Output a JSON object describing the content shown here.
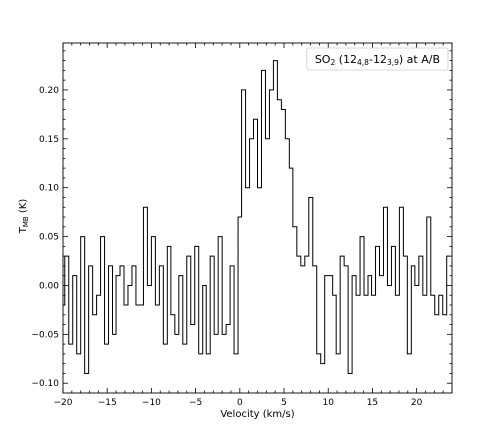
{
  "chart_data": {
    "type": "line",
    "step": true,
    "legend": {
      "placement": "top-right",
      "label": {
        "species": "SO",
        "species_sub": "2",
        "open": " (12",
        "sub1": "4,8",
        "dash": "-12",
        "sub2": "3,9",
        "close": ") at A/B"
      }
    },
    "xlabel": "Velocity (km/s)",
    "ylabel": {
      "main": "T",
      "sub": "MB",
      "unit": " (K)"
    },
    "xlim": [
      -20,
      24
    ],
    "ylim": [
      -0.11,
      0.248
    ],
    "xticks": [
      -20,
      -15,
      -10,
      -5,
      0,
      5,
      10,
      15,
      20
    ],
    "xtick_labels": [
      "−20",
      "−15",
      "−10",
      "−5",
      "0",
      "5",
      "10",
      "15",
      "20"
    ],
    "yticks": [
      -0.1,
      -0.05,
      0.0,
      0.05,
      0.1,
      0.15,
      0.2
    ],
    "ytick_labels": [
      "−0.10",
      "−0.05",
      "0.00",
      "0.05",
      "0.10",
      "0.15",
      "0.20"
    ],
    "grid": false,
    "series": [
      {
        "x": [
          -20.0,
          -19.6,
          -19.1,
          -18.7,
          -18.2,
          -17.8,
          -17.3,
          -16.9,
          -16.4,
          -16.0,
          -15.5,
          -15.1,
          -14.6,
          -14.2,
          -13.8,
          -13.3,
          -12.9,
          -12.4,
          -12.0,
          -11.5,
          -11.1,
          -10.7,
          -10.2,
          -9.8,
          -9.3,
          -8.9,
          -8.4,
          -8.0,
          -7.6,
          -7.1,
          -6.7,
          -6.2,
          -5.8,
          -5.3,
          -4.9,
          -4.4,
          -4.0,
          -3.6,
          -3.1,
          -2.7,
          -2.2,
          -1.8,
          -1.3,
          -0.9,
          -0.4,
          0.0,
          0.4,
          0.9,
          1.3,
          1.8,
          2.2,
          2.7,
          3.1,
          3.6,
          4.0,
          4.5,
          4.9,
          5.4,
          5.8,
          6.2,
          6.7,
          7.1,
          7.6,
          8.0,
          8.5,
          8.9,
          9.4,
          9.8,
          10.3,
          10.7,
          11.1,
          11.6,
          12.0,
          12.5,
          12.9,
          13.4,
          13.8,
          14.3,
          14.7,
          15.1,
          15.6,
          16.0,
          16.5,
          16.9,
          17.4,
          17.8,
          18.3,
          18.7,
          19.2,
          19.6,
          20.0,
          20.5,
          20.9,
          21.4,
          21.8,
          22.3,
          22.7,
          23.2,
          23.6
        ],
        "values": [
          -0.02,
          0.03,
          -0.06,
          0.01,
          -0.07,
          0.05,
          -0.09,
          0.02,
          -0.03,
          -0.01,
          0.05,
          -0.06,
          0.02,
          -0.05,
          0.01,
          0.02,
          -0.02,
          0.0,
          0.02,
          -0.02,
          -0.02,
          0.08,
          0.0,
          0.05,
          -0.02,
          0.02,
          -0.06,
          0.04,
          -0.03,
          -0.05,
          0.01,
          -0.06,
          0.03,
          -0.04,
          0.04,
          -0.07,
          0.0,
          -0.07,
          0.03,
          -0.05,
          0.05,
          -0.05,
          -0.04,
          0.02,
          -0.07,
          0.07,
          0.2,
          0.1,
          0.15,
          0.17,
          0.1,
          0.22,
          0.15,
          0.2,
          0.23,
          0.19,
          0.18,
          0.15,
          0.12,
          0.06,
          0.03,
          0.02,
          0.03,
          0.09,
          0.02,
          -0.07,
          -0.08,
          0.01,
          0.01,
          -0.01,
          -0.07,
          0.03,
          0.02,
          -0.09,
          0.01,
          -0.01,
          0.05,
          -0.01,
          0.01,
          -0.01,
          0.04,
          0.01,
          0.08,
          0.0,
          0.04,
          -0.01,
          0.08,
          0.03,
          -0.07,
          0.02,
          0.0,
          0.03,
          -0.01,
          0.07,
          -0.01,
          -0.03,
          -0.01,
          -0.03,
          0.03
        ]
      }
    ]
  }
}
